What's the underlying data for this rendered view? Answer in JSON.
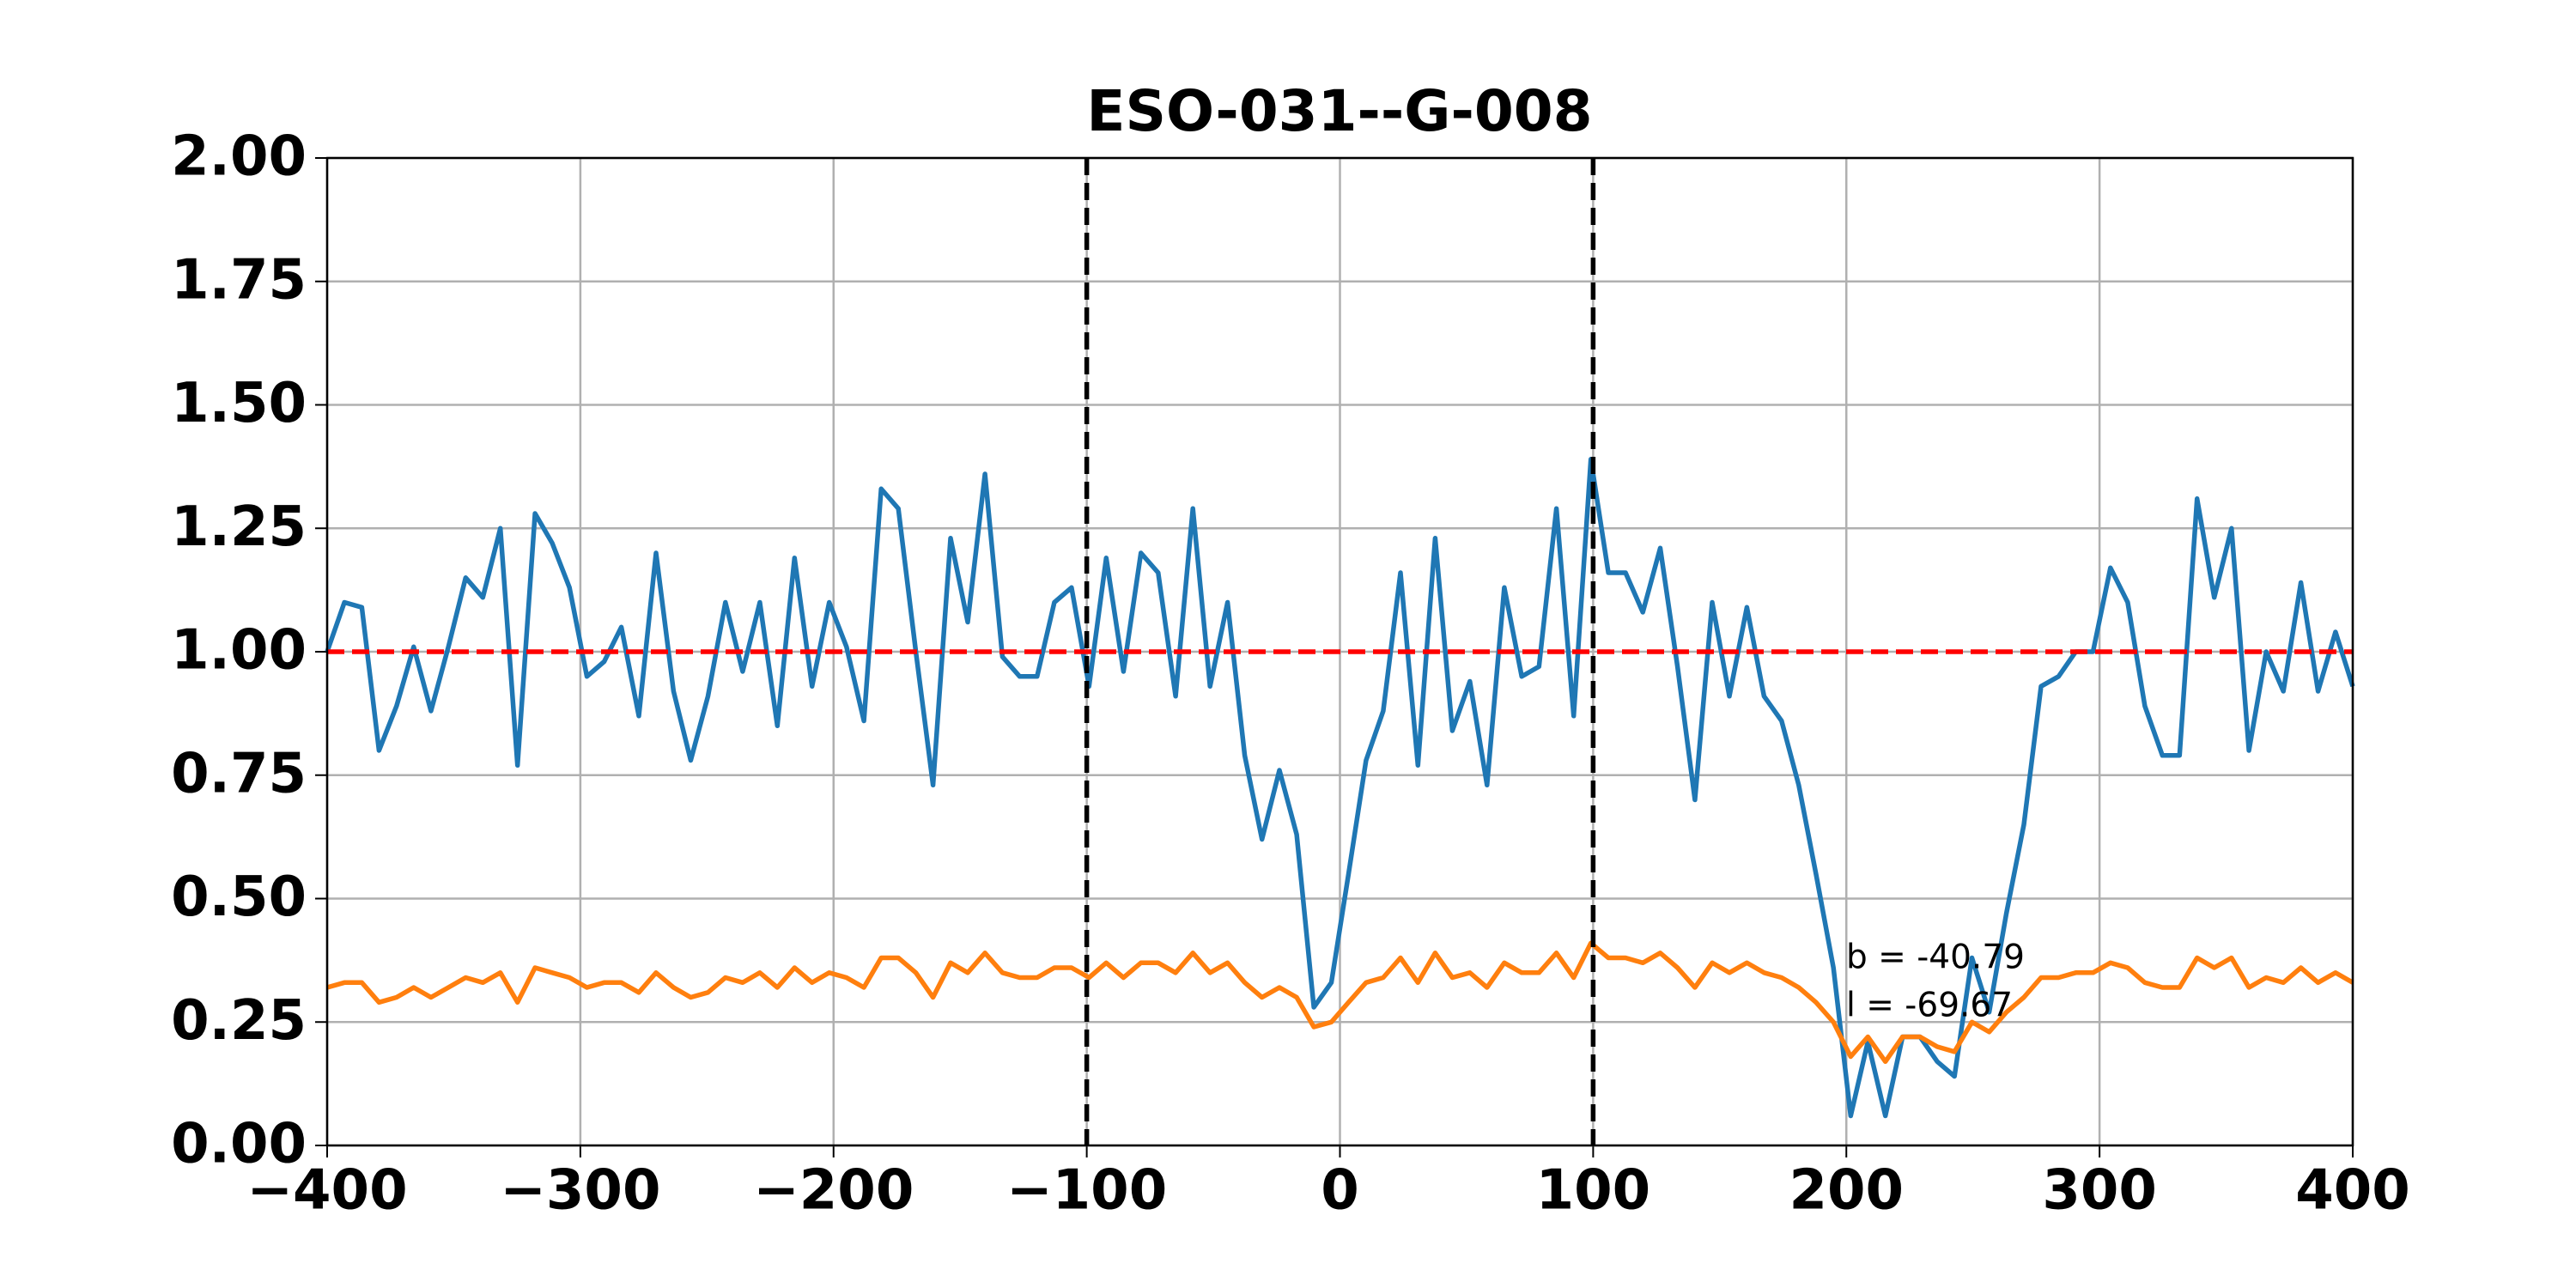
{
  "chart_data": {
    "type": "line",
    "title": "ESO-031--G-008",
    "x": [
      -400,
      -393.2,
      -386.3,
      -379.5,
      -372.6,
      -365.8,
      -359.0,
      -352.1,
      -345.3,
      -338.5,
      -331.6,
      -324.8,
      -317.9,
      -311.1,
      -304.3,
      -297.4,
      -290.6,
      -283.8,
      -276.9,
      -270.1,
      -263.2,
      -256.4,
      -249.6,
      -242.7,
      -235.9,
      -229.1,
      -222.2,
      -215.4,
      -208.5,
      -201.7,
      -194.9,
      -188.0,
      -181.2,
      -174.4,
      -167.5,
      -160.7,
      -153.8,
      -147.0,
      -140.2,
      -133.3,
      -126.5,
      -119.6,
      -112.8,
      -106.0,
      -99.1,
      -92.3,
      -85.5,
      -78.6,
      -71.8,
      -64.9,
      -58.1,
      -51.3,
      -44.4,
      -37.6,
      -30.8,
      -23.9,
      -17.1,
      -10.3,
      -3.4,
      3.4,
      10.3,
      17.1,
      23.9,
      30.8,
      37.6,
      44.4,
      51.3,
      58.1,
      64.9,
      71.8,
      78.6,
      85.5,
      92.3,
      99.1,
      106.0,
      112.8,
      119.6,
      126.5,
      133.3,
      140.2,
      147.0,
      153.8,
      160.7,
      167.5,
      174.4,
      181.2,
      188.0,
      194.9,
      201.7,
      208.5,
      215.4,
      222.2,
      229.1,
      235.9,
      242.7,
      249.6,
      256.4,
      263.2,
      270.1,
      276.9,
      283.8,
      290.6,
      297.4,
      304.3,
      311.1,
      317.9,
      324.8,
      331.6,
      338.5,
      345.3,
      352.1,
      359.0,
      365.8,
      372.6,
      379.5,
      386.3,
      393.2,
      400
    ],
    "series": [
      {
        "color": "#1f77b4",
        "values": [
          1.0,
          1.1,
          1.09,
          0.8,
          0.89,
          1.01,
          0.88,
          1.01,
          1.15,
          1.11,
          1.25,
          0.77,
          1.28,
          1.22,
          1.13,
          0.95,
          0.98,
          1.05,
          0.87,
          1.2,
          0.92,
          0.78,
          0.91,
          1.1,
          0.96,
          1.1,
          0.85,
          1.19,
          0.93,
          1.1,
          1.01,
          0.86,
          1.33,
          1.29,
          1.0,
          0.73,
          1.23,
          1.06,
          1.36,
          0.99,
          0.95,
          0.95,
          1.1,
          1.13,
          0.93,
          1.19,
          0.96,
          1.2,
          1.16,
          0.91,
          1.29,
          0.93,
          1.1,
          0.79,
          0.62,
          0.76,
          0.63,
          0.28,
          0.33,
          0.55,
          0.78,
          0.88,
          1.16,
          0.77,
          1.23,
          0.84,
          0.94,
          0.73,
          1.13,
          0.95,
          0.97,
          1.29,
          0.87,
          1.39,
          1.16,
          1.16,
          1.08,
          1.21,
          0.97,
          0.7,
          1.1,
          0.91,
          1.09,
          0.91,
          0.86,
          0.73,
          0.55,
          0.36,
          0.06,
          0.21,
          0.06,
          0.22,
          0.22,
          0.17,
          0.14,
          0.38,
          0.27,
          0.47,
          0.65,
          0.93,
          0.95,
          1.0,
          1.0,
          1.17,
          1.1,
          0.89,
          0.79,
          0.79,
          1.31,
          1.11,
          1.25,
          0.8,
          1.0,
          0.92,
          1.14,
          0.92,
          1.04,
          0.93
        ]
      },
      {
        "color": "#ff7f0e",
        "values": [
          0.32,
          0.33,
          0.33,
          0.29,
          0.3,
          0.32,
          0.3,
          0.32,
          0.34,
          0.33,
          0.35,
          0.29,
          0.36,
          0.35,
          0.34,
          0.32,
          0.33,
          0.33,
          0.31,
          0.35,
          0.32,
          0.3,
          0.31,
          0.34,
          0.33,
          0.35,
          0.32,
          0.36,
          0.33,
          0.35,
          0.34,
          0.32,
          0.38,
          0.38,
          0.35,
          0.3,
          0.37,
          0.35,
          0.39,
          0.35,
          0.34,
          0.34,
          0.36,
          0.36,
          0.34,
          0.37,
          0.34,
          0.37,
          0.37,
          0.35,
          0.39,
          0.35,
          0.37,
          0.33,
          0.3,
          0.32,
          0.3,
          0.24,
          0.25,
          0.29,
          0.33,
          0.34,
          0.38,
          0.33,
          0.39,
          0.34,
          0.35,
          0.32,
          0.37,
          0.35,
          0.35,
          0.39,
          0.34,
          0.41,
          0.38,
          0.38,
          0.37,
          0.39,
          0.36,
          0.32,
          0.37,
          0.35,
          0.37,
          0.35,
          0.34,
          0.32,
          0.29,
          0.25,
          0.18,
          0.22,
          0.17,
          0.22,
          0.22,
          0.2,
          0.19,
          0.25,
          0.23,
          0.27,
          0.3,
          0.34,
          0.34,
          0.35,
          0.35,
          0.37,
          0.36,
          0.33,
          0.32,
          0.32,
          0.38,
          0.36,
          0.38,
          0.32,
          0.34,
          0.33,
          0.36,
          0.33,
          0.35,
          0.33
        ]
      }
    ],
    "hline": {
      "y": 1,
      "color": "#ff0000"
    },
    "vlines": {
      "x": [
        -100,
        100
      ],
      "color": "#000000"
    },
    "annotations": [
      "b = -40.79",
      "l = -69.67"
    ],
    "xlim": [
      -400,
      400
    ],
    "xticks": [
      {
        "value": -400,
        "label": "−400"
      },
      {
        "value": -300,
        "label": "−300"
      },
      {
        "value": -200,
        "label": "−200"
      },
      {
        "value": -100,
        "label": "−100"
      },
      0,
      100,
      200,
      300,
      400
    ],
    "ylim": [
      0,
      2
    ],
    "yticks": [
      {
        "value": 0,
        "label": "0.00"
      },
      {
        "value": 0.25,
        "label": "0.25"
      },
      {
        "value": 0.5,
        "label": "0.50"
      },
      {
        "value": 0.75,
        "label": "0.75"
      },
      {
        "value": 1,
        "label": "1.00"
      },
      {
        "value": 1.25,
        "label": "1.25"
      },
      {
        "value": 1.5,
        "label": "1.50"
      },
      {
        "value": 1.75,
        "label": "1.75"
      },
      {
        "value": 2,
        "label": "2.00"
      }
    ],
    "grid": true
  }
}
